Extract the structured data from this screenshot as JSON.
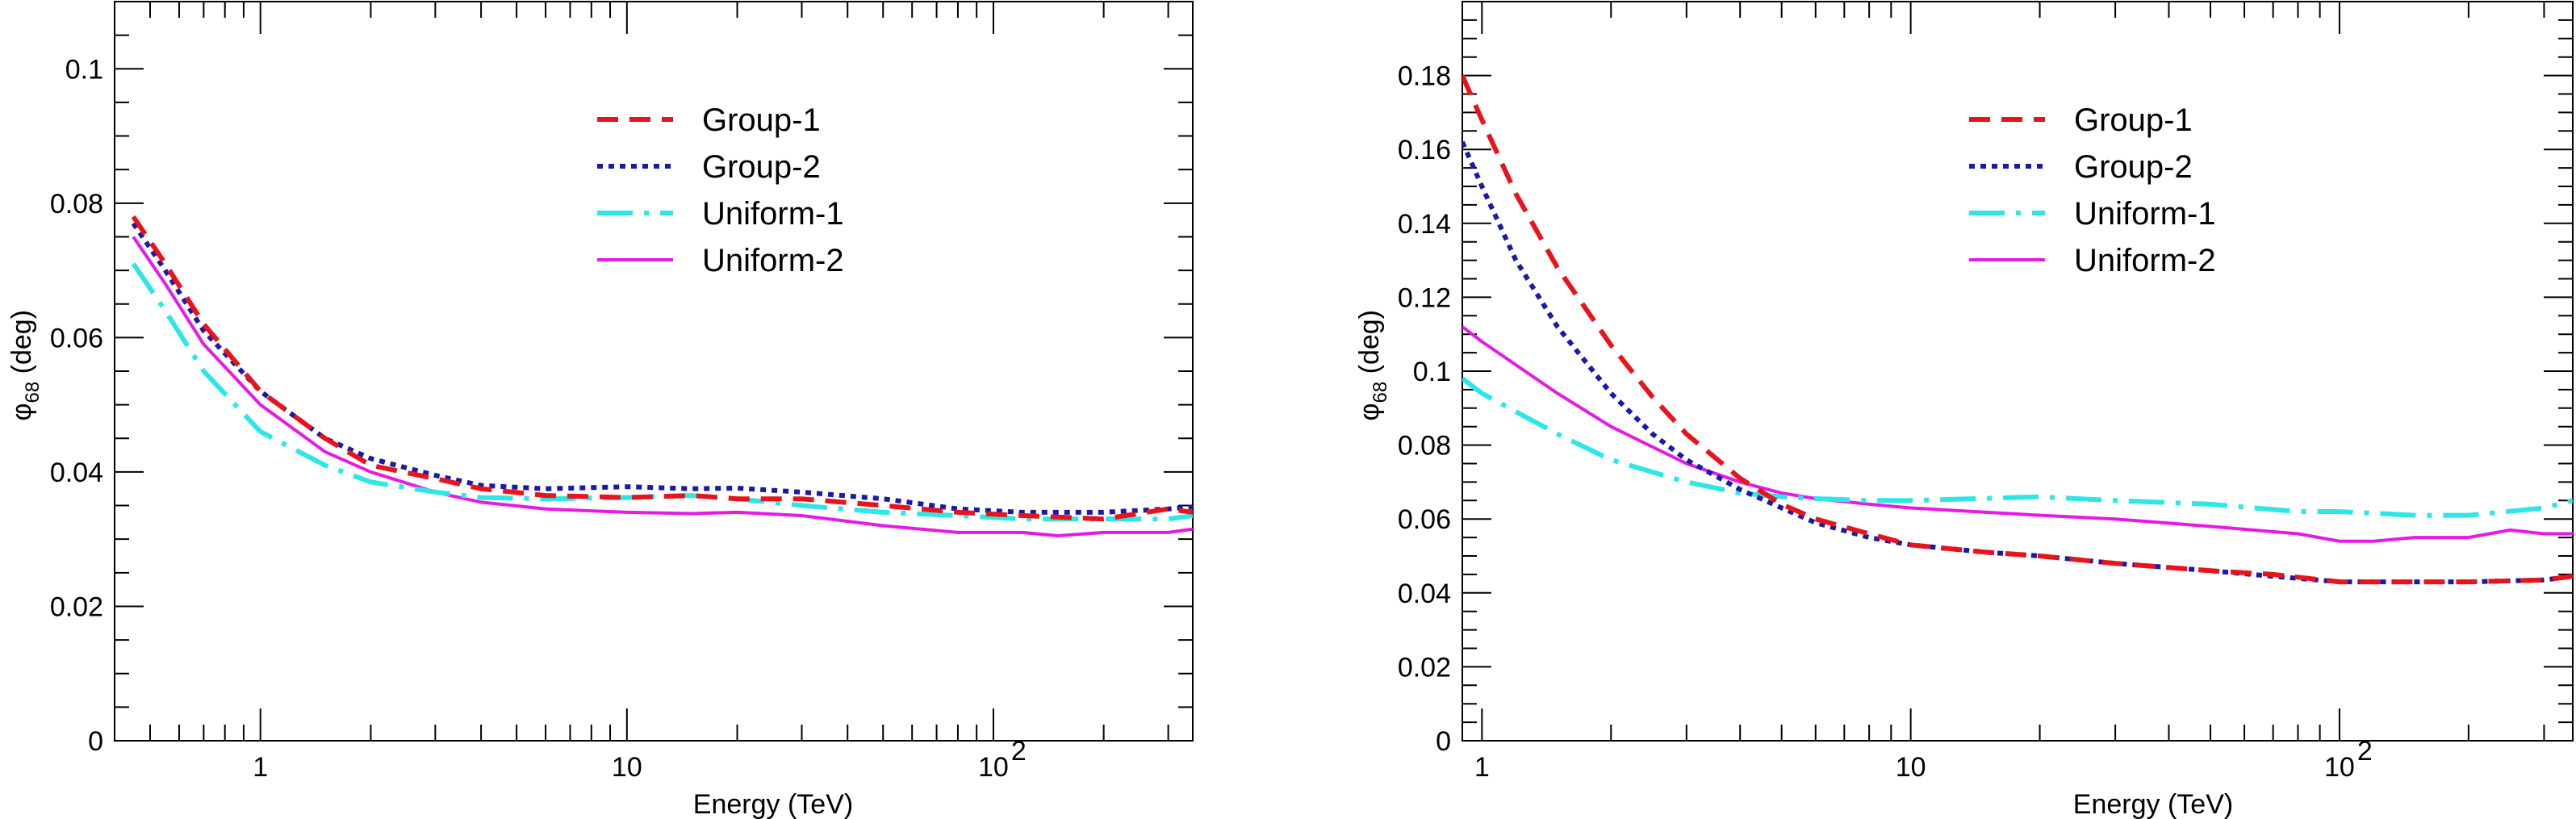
{
  "chart_data": [
    {
      "type": "line",
      "xscale": "log",
      "xlim": [
        0.4,
        350
      ],
      "ylim": [
        0,
        0.11
      ],
      "xlabel": "Energy (TeV)",
      "ylabel": "φ68 (deg)",
      "ylabel_main": "φ",
      "ylabel_sub": "68",
      "ylabel_unit": " (deg)",
      "yticks": [
        0,
        0.02,
        0.04,
        0.06,
        0.08,
        0.1
      ],
      "ytick_labels": [
        "0",
        "0.02",
        "0.04",
        "0.06",
        "0.08",
        "0.1"
      ],
      "xticks": [
        1,
        10,
        100
      ],
      "xtick_labels": [
        "1",
        "10",
        "10",
        "2"
      ],
      "legend_position": "top-right",
      "grid": false,
      "series": [
        {
          "name": "Group-1",
          "color": "#e8141c",
          "style": "dashed",
          "x": [
            0.45,
            0.55,
            0.7,
            1.0,
            1.5,
            2.0,
            3.0,
            4.0,
            6.0,
            10,
            15,
            20,
            30,
            50,
            80,
            120,
            200,
            300,
            350
          ],
          "y": [
            0.078,
            0.071,
            0.062,
            0.052,
            0.045,
            0.041,
            0.039,
            0.0375,
            0.0365,
            0.0362,
            0.0365,
            0.036,
            0.036,
            0.035,
            0.034,
            0.0335,
            0.033,
            0.0345,
            0.034
          ]
        },
        {
          "name": "Group-2",
          "color": "#1a1aa8",
          "style": "dotted",
          "x": [
            0.45,
            0.55,
            0.7,
            1.0,
            1.5,
            2.0,
            3.0,
            4.0,
            6.0,
            10,
            15,
            20,
            30,
            50,
            80,
            120,
            200,
            300,
            350
          ],
          "y": [
            0.077,
            0.07,
            0.061,
            0.052,
            0.045,
            0.042,
            0.0395,
            0.038,
            0.0375,
            0.0378,
            0.0375,
            0.0376,
            0.037,
            0.036,
            0.0345,
            0.034,
            0.034,
            0.0345,
            0.0348
          ]
        },
        {
          "name": "Uniform-1",
          "color": "#2ee6e6",
          "style": "dashdot",
          "x": [
            0.45,
            0.55,
            0.7,
            1.0,
            1.5,
            2.0,
            3.0,
            4.0,
            6.0,
            10,
            15,
            20,
            30,
            50,
            80,
            120,
            200,
            300,
            350
          ],
          "y": [
            0.071,
            0.064,
            0.055,
            0.046,
            0.041,
            0.0385,
            0.037,
            0.0362,
            0.036,
            0.0362,
            0.0365,
            0.036,
            0.035,
            0.034,
            0.0335,
            0.033,
            0.033,
            0.033,
            0.0335
          ]
        },
        {
          "name": "Uniform-2",
          "color": "#e619e6",
          "style": "solid",
          "x": [
            0.45,
            0.55,
            0.7,
            1.0,
            1.5,
            2.0,
            3.0,
            4.0,
            6.0,
            10,
            15,
            20,
            30,
            50,
            80,
            120,
            150,
            200,
            300,
            350
          ],
          "y": [
            0.075,
            0.068,
            0.059,
            0.05,
            0.043,
            0.04,
            0.037,
            0.0355,
            0.0345,
            0.034,
            0.0338,
            0.034,
            0.0335,
            0.032,
            0.031,
            0.031,
            0.0305,
            0.031,
            0.031,
            0.0315
          ]
        }
      ]
    },
    {
      "type": "line",
      "xscale": "log",
      "xlim": [
        0.9,
        350
      ],
      "ylim": [
        0,
        0.2
      ],
      "xlabel": "Energy (TeV)",
      "ylabel": "φ68 (deg)",
      "ylabel_main": "φ",
      "ylabel_sub": "68",
      "ylabel_unit": " (deg)",
      "yticks": [
        0,
        0.02,
        0.04,
        0.06,
        0.08,
        0.1,
        0.12,
        0.14,
        0.16,
        0.18
      ],
      "ytick_labels": [
        "0",
        "0.02",
        "0.04",
        "0.06",
        "0.08",
        "0.1",
        "0.12",
        "0.14",
        "0.16",
        "0.18"
      ],
      "xticks": [
        1,
        10,
        100
      ],
      "xtick_labels": [
        "1",
        "10",
        "10",
        "2"
      ],
      "legend_position": "top-right",
      "grid": false,
      "series": [
        {
          "name": "Group-1",
          "color": "#e8141c",
          "style": "dashed",
          "x": [
            0.9,
            1.0,
            1.2,
            1.5,
            2.0,
            2.5,
            3.0,
            4.0,
            5.0,
            6.0,
            8.0,
            10,
            15,
            20,
            30,
            50,
            70,
            100,
            150,
            200,
            300,
            350
          ],
          "y": [
            0.18,
            0.168,
            0.148,
            0.128,
            0.107,
            0.093,
            0.083,
            0.071,
            0.064,
            0.06,
            0.056,
            0.053,
            0.051,
            0.05,
            0.048,
            0.046,
            0.045,
            0.043,
            0.043,
            0.043,
            0.0435,
            0.0445
          ]
        },
        {
          "name": "Group-2",
          "color": "#1a1aa8",
          "style": "dotted",
          "x": [
            0.9,
            1.0,
            1.2,
            1.5,
            2.0,
            2.5,
            3.0,
            4.0,
            5.0,
            6.0,
            8.0,
            10,
            15,
            20,
            30,
            50,
            70,
            100,
            150,
            200,
            300,
            350
          ],
          "y": [
            0.162,
            0.15,
            0.13,
            0.112,
            0.094,
            0.083,
            0.076,
            0.068,
            0.063,
            0.059,
            0.055,
            0.053,
            0.051,
            0.05,
            0.048,
            0.046,
            0.0445,
            0.043,
            0.043,
            0.043,
            0.0435,
            0.0445
          ]
        },
        {
          "name": "Uniform-1",
          "color": "#2ee6e6",
          "style": "dashdot",
          "x": [
            0.9,
            1.0,
            1.5,
            2.0,
            3.0,
            4.0,
            5.0,
            6.0,
            8.0,
            10,
            20,
            30,
            50,
            80,
            100,
            150,
            200,
            300,
            350
          ],
          "y": [
            0.098,
            0.094,
            0.083,
            0.076,
            0.07,
            0.067,
            0.066,
            0.0655,
            0.065,
            0.065,
            0.066,
            0.065,
            0.064,
            0.062,
            0.062,
            0.061,
            0.061,
            0.063,
            0.065
          ]
        },
        {
          "name": "Uniform-2",
          "color": "#e619e6",
          "style": "solid",
          "x": [
            0.9,
            1.0,
            1.5,
            2.0,
            3.0,
            4.0,
            5.0,
            6.0,
            8.0,
            10,
            20,
            30,
            50,
            80,
            100,
            120,
            150,
            200,
            250,
            300,
            350
          ],
          "y": [
            0.112,
            0.108,
            0.094,
            0.085,
            0.075,
            0.07,
            0.067,
            0.0655,
            0.064,
            0.063,
            0.061,
            0.06,
            0.058,
            0.056,
            0.054,
            0.054,
            0.055,
            0.055,
            0.057,
            0.056,
            0.056
          ]
        }
      ]
    }
  ]
}
